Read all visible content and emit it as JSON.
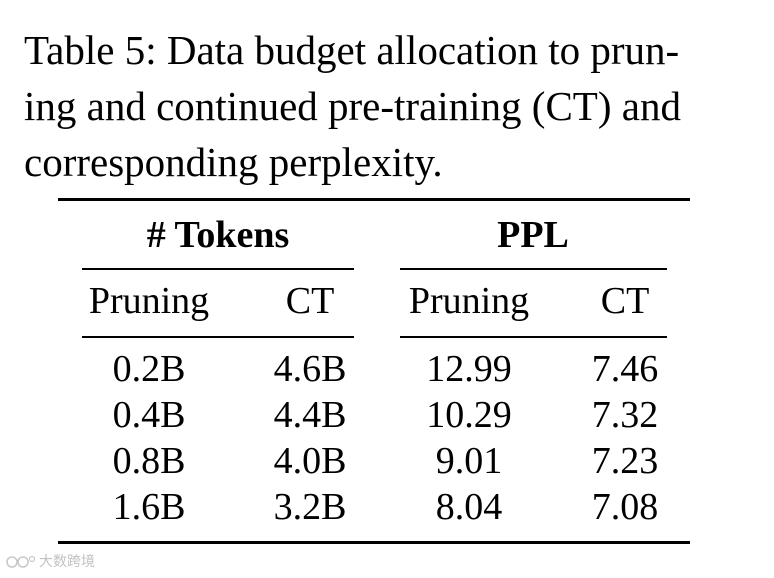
{
  "caption": {
    "lines": [
      "Table 5: Data budget allocation to prun-",
      "ing and continued pre-training (CT) and",
      "corresponding perplexity."
    ]
  },
  "table": {
    "group_headers": [
      "# Tokens",
      "PPL"
    ],
    "sub_headers": [
      "Pruning",
      "CT",
      "Pruning",
      "CT"
    ],
    "rows": [
      [
        "0.2B",
        "4.6B",
        "12.99",
        "7.46"
      ],
      [
        "0.4B",
        "4.4B",
        "10.29",
        "7.32"
      ],
      [
        "0.8B",
        "4.0B",
        "9.01",
        "7.23"
      ],
      [
        "1.6B",
        "3.2B",
        "8.04",
        "7.08"
      ]
    ]
  },
  "watermark": {
    "text": "大数跨境"
  }
}
